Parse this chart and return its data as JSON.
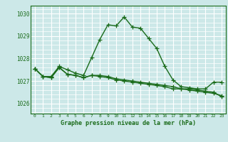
{
  "title": "Graphe pression niveau de la mer (hPa)",
  "bg_color": "#cce8e8",
  "grid_color": "#ffffff",
  "line_color": "#1a6b1a",
  "xlim": [
    -0.5,
    23.5
  ],
  "ylim": [
    1025.55,
    1030.35
  ],
  "yticks": [
    1026,
    1027,
    1028,
    1029,
    1030
  ],
  "xticks": [
    0,
    1,
    2,
    3,
    4,
    5,
    6,
    7,
    8,
    9,
    10,
    11,
    12,
    13,
    14,
    15,
    16,
    17,
    18,
    19,
    20,
    21,
    22,
    23
  ],
  "series1": [
    1027.55,
    1027.2,
    1027.2,
    1027.65,
    1027.5,
    1027.35,
    1027.25,
    1028.05,
    1028.85,
    1029.5,
    1029.45,
    1029.85,
    1029.4,
    1029.35,
    1028.9,
    1028.45,
    1027.65,
    1027.05,
    1026.75,
    1026.7,
    1026.65,
    1026.65,
    1026.95,
    1026.95
  ],
  "series2": [
    1027.55,
    1027.2,
    1027.15,
    1027.6,
    1027.3,
    1027.25,
    1027.15,
    1027.25,
    1027.25,
    1027.2,
    1027.1,
    1027.05,
    1027.0,
    1026.95,
    1026.9,
    1026.85,
    1026.8,
    1026.75,
    1026.65,
    1026.65,
    1026.6,
    1026.55,
    1026.5,
    1026.3
  ],
  "series3": [
    1027.55,
    1027.2,
    1027.15,
    1027.6,
    1027.3,
    1027.25,
    1027.15,
    1027.25,
    1027.2,
    1027.15,
    1027.05,
    1027.0,
    1026.95,
    1026.9,
    1026.85,
    1026.8,
    1026.75,
    1026.65,
    1026.65,
    1026.6,
    1026.55,
    1026.5,
    1026.45,
    1026.35
  ]
}
